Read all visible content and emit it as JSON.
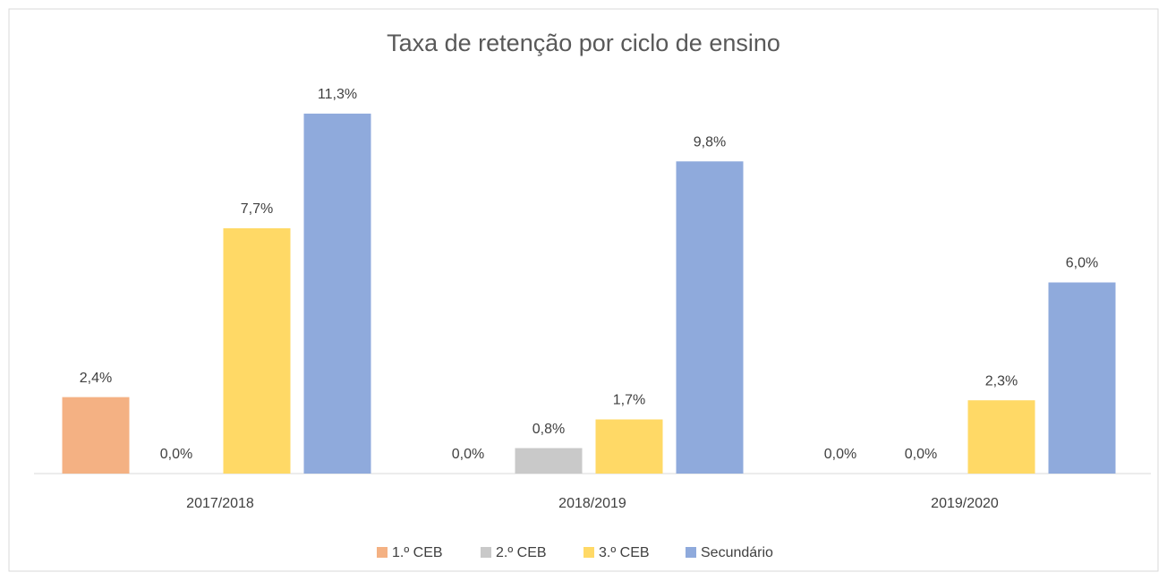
{
  "chart_data": {
    "type": "bar",
    "title": "Taxa de retenção por ciclo de ensino",
    "categories": [
      "2017/2018",
      "2018/2019",
      "2019/2020"
    ],
    "series": [
      {
        "name": "1.º CEB",
        "color": "#f4b183",
        "values": [
          2.4,
          0.0,
          0.0
        ],
        "value_labels": [
          "2,4%",
          "0,0%",
          "0,0%"
        ]
      },
      {
        "name": "2.º CEB",
        "color": "#c9c9c9",
        "values": [
          0.0,
          0.8,
          0.0
        ],
        "value_labels": [
          "0,0%",
          "0,8%",
          "0,0%"
        ]
      },
      {
        "name": "3.º CEB",
        "color": "#ffd966",
        "values": [
          7.7,
          1.7,
          2.3
        ],
        "value_labels": [
          "7,7%",
          "1,7%",
          "2,3%"
        ]
      },
      {
        "name": "Secundário",
        "color": "#8faadc",
        "values": [
          11.3,
          9.8,
          6.0
        ],
        "value_labels": [
          "11,3%",
          "9,8%",
          "6,0%"
        ]
      }
    ],
    "ylim": [
      0,
      12
    ],
    "legend": "bottom"
  }
}
